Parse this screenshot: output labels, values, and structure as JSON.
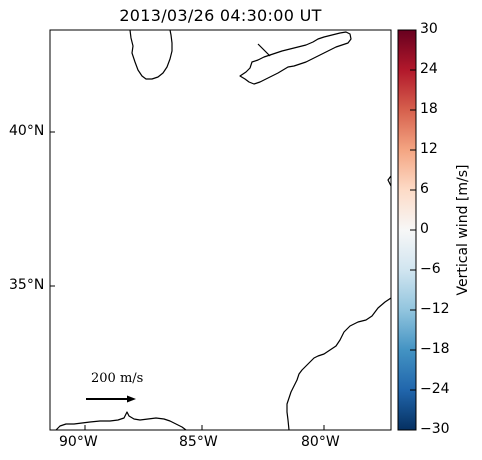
{
  "title": "2013/03/26 04:30:00 UT",
  "map": {
    "lat_ticks": [
      {
        "value": 40,
        "label": "40°N"
      },
      {
        "value": 35,
        "label": "35°N"
      }
    ],
    "lon_ticks": [
      {
        "value": -90,
        "label": "90°W"
      },
      {
        "value": -85,
        "label": "85°W"
      },
      {
        "value": -80,
        "label": "80°W"
      }
    ],
    "features": [
      "coastlines",
      "great-lakes"
    ]
  },
  "reference_vector": {
    "label": "200 m/s",
    "magnitude": 200,
    "unit": "m/s"
  },
  "colorbar": {
    "label": "Vertical wind [m/s]",
    "colormap": "RdBu_r",
    "range": [
      -30,
      30
    ],
    "ticks": [
      "30",
      "24",
      "18",
      "12",
      "6",
      "0",
      "−6",
      "−12",
      "−18",
      "−24",
      "−30"
    ],
    "colors": [
      "#67001f",
      "#b2182b",
      "#d6604d",
      "#f4a582",
      "#fddbc7",
      "#f7f7f7",
      "#d1e5f0",
      "#92c5de",
      "#4393c3",
      "#2166ac",
      "#053061"
    ]
  }
}
